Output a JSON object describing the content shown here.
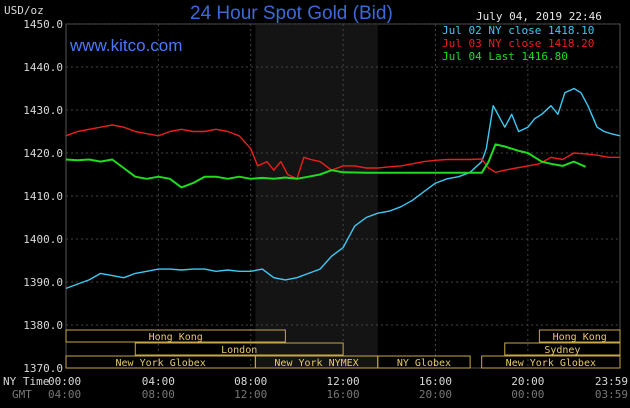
{
  "header": {
    "title": "24 Hour Spot Gold (Bid)",
    "brand": "www.kitco.com",
    "date": "July 04, 2019 22:46",
    "unit": "USD/oz"
  },
  "legend": [
    {
      "label": "Jul 02 NY close 1418.10",
      "color": "#3ec9f5"
    },
    {
      "label": "Jul 03 NY close 1418.20",
      "color": "#e8211b"
    },
    {
      "label": "Jul 04 Last 1416.80",
      "color": "#1fdc1f"
    }
  ],
  "axis_labels": {
    "ny_time": "NY Time",
    "gmt": "GMT"
  },
  "sessions": {
    "row1": [
      {
        "label": "Hong Kong",
        "start": 0,
        "end": 9.5
      },
      {
        "label": "Hong Kong",
        "start": 20.5,
        "end": 23.99
      }
    ],
    "row2": [
      {
        "label": "London",
        "start": 3,
        "end": 12
      },
      {
        "label": "Sydney",
        "start": 19,
        "end": 23.99
      }
    ],
    "row3": [
      {
        "label": "New York Globex",
        "start": 0,
        "end": 8.2
      },
      {
        "label": "New York NYMEX",
        "start": 8.2,
        "end": 13.5
      },
      {
        "label": "NY Globex",
        "start": 13.5,
        "end": 17.5
      },
      {
        "label": "New York Globex",
        "start": 18,
        "end": 23.99
      }
    ]
  },
  "chart_data": {
    "type": "line",
    "title": "24 Hour Spot Gold (Bid)",
    "ylabel": "USD/oz",
    "ylim": [
      1370,
      1450
    ],
    "xlim": [
      0,
      23.99
    ],
    "y_ticks": [
      "1370.0",
      "1380.0",
      "1390.0",
      "1400.0",
      "1410.0",
      "1420.0",
      "1430.0",
      "1440.0",
      "1450.0"
    ],
    "x_ticks_ny": [
      "00:00",
      "04:00",
      "08:00",
      "12:00",
      "16:00",
      "20:00",
      "23:59"
    ],
    "x_ticks_gmt": [
      "04:00",
      "08:00",
      "12:00",
      "16:00",
      "20:00",
      "00:00",
      "03:59"
    ],
    "shaded_region": [
      8.2,
      13.5
    ],
    "grid": true,
    "legend_position": "top-right",
    "series": [
      {
        "name": "Jul 02 NY close 1418.10",
        "color": "#3ec9f5",
        "x": [
          0,
          0.5,
          1,
          1.5,
          2,
          2.5,
          3,
          3.5,
          4,
          4.5,
          5,
          5.5,
          6,
          6.5,
          7,
          7.5,
          8,
          8.5,
          9,
          9.5,
          10,
          10.5,
          11,
          11.5,
          12,
          12.5,
          13,
          13.5,
          14,
          14.5,
          15,
          15.5,
          16,
          16.5,
          17,
          17.5,
          18,
          18.2,
          18.5,
          18.8,
          19,
          19.3,
          19.6,
          20,
          20.3,
          20.6,
          21,
          21.3,
          21.6,
          22,
          22.3,
          22.6,
          23,
          23.3,
          23.6,
          23.99
        ],
        "y": [
          1388.5,
          1389.5,
          1390.5,
          1392,
          1391.5,
          1391,
          1392,
          1392.5,
          1393,
          1393,
          1392.8,
          1393,
          1393,
          1392.5,
          1392.8,
          1392.5,
          1392.5,
          1393,
          1391,
          1390.5,
          1391,
          1392,
          1393,
          1396,
          1398,
          1403,
          1405,
          1406,
          1406.5,
          1407.5,
          1409,
          1411,
          1413,
          1414,
          1414.5,
          1415.5,
          1418,
          1421,
          1431,
          1428,
          1426,
          1429,
          1425,
          1426,
          1428,
          1429,
          1431,
          1429,
          1434,
          1435,
          1434,
          1431,
          1426,
          1425,
          1424.5,
          1424
        ]
      },
      {
        "name": "Jul 03 NY close 1418.20",
        "color": "#e8211b",
        "x": [
          0,
          0.5,
          1,
          1.5,
          2,
          2.5,
          3,
          3.5,
          4,
          4.5,
          5,
          5.5,
          6,
          6.5,
          7,
          7.5,
          8,
          8.3,
          8.7,
          9,
          9.3,
          9.6,
          10,
          10.3,
          10.6,
          11,
          11.5,
          12,
          12.5,
          13,
          13.5,
          14,
          14.5,
          15,
          15.5,
          16,
          16.5,
          17,
          17.5,
          18,
          18.3,
          18.6,
          19,
          19.5,
          20,
          20.5,
          21,
          21.5,
          22,
          22.5,
          23,
          23.5,
          23.99
        ],
        "y": [
          1424,
          1425,
          1425.5,
          1426,
          1426.5,
          1426,
          1425,
          1424.5,
          1424,
          1425,
          1425.5,
          1425,
          1425,
          1425.5,
          1425,
          1424,
          1421,
          1417,
          1418,
          1416,
          1418,
          1415,
          1414,
          1419,
          1418.5,
          1418,
          1416,
          1417,
          1417,
          1416.5,
          1416.5,
          1416.8,
          1417,
          1417.5,
          1418,
          1418.3,
          1418.5,
          1418.5,
          1418.5,
          1418.6,
          1416.5,
          1415.5,
          1416,
          1416.5,
          1417,
          1417.5,
          1419,
          1418.5,
          1420,
          1419.8,
          1419.5,
          1419,
          1419
        ]
      },
      {
        "name": "Jul 04 Last 1416.80",
        "color": "#1fdc1f",
        "x": [
          0,
          0.5,
          1,
          1.5,
          2,
          2.5,
          3,
          3.5,
          4,
          4.5,
          5,
          5.5,
          6,
          6.5,
          7,
          7.5,
          8,
          8.5,
          9,
          9.5,
          10,
          10.5,
          11,
          11.5,
          12,
          13,
          14,
          15,
          16,
          17,
          17.5,
          18,
          18.3,
          18.6,
          19,
          19.3,
          19.6,
          20,
          20.3,
          20.6,
          21,
          21.5,
          22,
          22.5
        ],
        "y": [
          1418.5,
          1418.3,
          1418.5,
          1418,
          1418.5,
          1416.5,
          1414.5,
          1414,
          1414.5,
          1414,
          1412,
          1413,
          1414.5,
          1414.5,
          1414,
          1414.5,
          1414,
          1414.2,
          1414,
          1414.3,
          1414,
          1414.5,
          1415,
          1416,
          1415.5,
          1415.4,
          1415.4,
          1415.4,
          1415.4,
          1415.4,
          1415.4,
          1415.4,
          1418,
          1422,
          1421.5,
          1421,
          1420.5,
          1420,
          1419,
          1418,
          1417.5,
          1417,
          1418,
          1416.8
        ]
      }
    ]
  }
}
